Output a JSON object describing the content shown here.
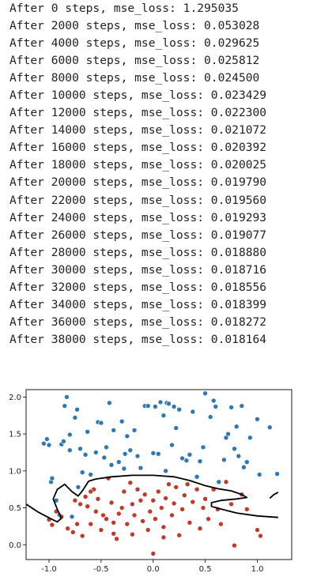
{
  "log_lines": [
    "After 0 steps, mse_loss: 1.295035",
    "After 2000 steps, mse_loss: 0.053028",
    "After 4000 steps, mse_loss: 0.029625",
    "After 6000 steps, mse_loss: 0.025812",
    "After 8000 steps, mse_loss: 0.024500",
    "After 10000 steps, mse_loss: 0.023429",
    "After 12000 steps, mse_loss: 0.022300",
    "After 14000 steps, mse_loss: 0.021072",
    "After 16000 steps, mse_loss: 0.020392",
    "After 18000 steps, mse_loss: 0.020025",
    "After 20000 steps, mse_loss: 0.019790",
    "After 22000 steps, mse_loss: 0.019560",
    "After 24000 steps, mse_loss: 0.019293",
    "After 26000 steps, mse_loss: 0.019077",
    "After 28000 steps, mse_loss: 0.018880",
    "After 30000 steps, mse_loss: 0.018716",
    "After 32000 steps, mse_loss: 0.018556",
    "After 34000 steps, mse_loss: 0.018399",
    "After 36000 steps, mse_loss: 0.018272",
    "After 38000 steps, mse_loss: 0.018164"
  ],
  "chart_data": {
    "type": "scatter",
    "xlim": [
      -1.22,
      1.33
    ],
    "ylim": [
      -0.2,
      2.1
    ],
    "x_ticks": [
      "-1.0",
      "-0.5",
      "0.0",
      "0.5",
      "1.0"
    ],
    "x_tick_values": [
      -1.0,
      -0.5,
      0.0,
      0.5,
      1.0
    ],
    "y_ticks": [
      "0.0",
      "0.5",
      "1.0",
      "1.5",
      "2.0"
    ],
    "y_tick_values": [
      0.0,
      0.5,
      1.0,
      1.5,
      2.0
    ],
    "grid": false,
    "series": [
      {
        "color": "#2f78b4",
        "points": [
          [
            -1.05,
            1.37
          ],
          [
            -1.02,
            1.43
          ],
          [
            -1.0,
            1.35
          ],
          [
            -0.98,
            0.85
          ],
          [
            -0.97,
            0.9
          ],
          [
            -0.9,
            0.4
          ],
          [
            -0.88,
            1.36
          ],
          [
            -0.86,
            1.4
          ],
          [
            -0.85,
            1.88
          ],
          [
            -0.83,
            2.0
          ],
          [
            -0.8,
            1.28
          ],
          [
            -0.8,
            1.49
          ],
          [
            -0.75,
            1.72
          ],
          [
            -0.73,
            1.83
          ],
          [
            -0.7,
            1.3
          ],
          [
            -0.68,
            0.98
          ],
          [
            -0.65,
            1.22
          ],
          [
            -0.63,
            1.53
          ],
          [
            -0.55,
            1.25
          ],
          [
            -0.53,
            1.66
          ],
          [
            -0.5,
            1.65
          ],
          [
            -0.47,
            1.18
          ],
          [
            -0.45,
            1.32
          ],
          [
            -0.42,
            1.92
          ],
          [
            -0.4,
            1.08
          ],
          [
            -0.38,
            1.55
          ],
          [
            -0.33,
            1.12
          ],
          [
            -0.3,
            1.67
          ],
          [
            -0.27,
            1.23
          ],
          [
            -0.25,
            1.47
          ],
          [
            -0.28,
            1.03
          ],
          [
            -0.22,
            1.28
          ],
          [
            -0.18,
            1.55
          ],
          [
            -0.15,
            1.2
          ],
          [
            -0.12,
            1.04
          ],
          [
            -0.08,
            1.88
          ],
          [
            -0.05,
            1.88
          ],
          [
            0.0,
            1.24
          ],
          [
            0.02,
            1.87
          ],
          [
            0.05,
            1.23
          ],
          [
            0.07,
            1.93
          ],
          [
            0.1,
            1.75
          ],
          [
            0.12,
            1.0
          ],
          [
            0.13,
            1.92
          ],
          [
            0.15,
            1.91
          ],
          [
            0.18,
            1.35
          ],
          [
            0.2,
            1.87
          ],
          [
            0.22,
            1.58
          ],
          [
            0.25,
            1.83
          ],
          [
            0.28,
            1.17
          ],
          [
            0.32,
            1.14
          ],
          [
            0.35,
            1.22
          ],
          [
            0.38,
            1.8
          ],
          [
            0.42,
            0.92
          ],
          [
            0.45,
            1.13
          ],
          [
            0.48,
            1.32
          ],
          [
            0.5,
            2.05
          ],
          [
            0.55,
            1.73
          ],
          [
            0.58,
            1.95
          ],
          [
            0.6,
            1.87
          ],
          [
            0.63,
            0.85
          ],
          [
            0.68,
            1.15
          ],
          [
            0.7,
            1.45
          ],
          [
            0.72,
            1.5
          ],
          [
            0.75,
            1.86
          ],
          [
            0.78,
            1.3
          ],
          [
            0.82,
            1.2
          ],
          [
            0.8,
            1.6
          ],
          [
            0.85,
            1.88
          ],
          [
            0.87,
            1.05
          ],
          [
            0.9,
            1.12
          ],
          [
            0.93,
            1.45
          ],
          [
            1.0,
            1.7
          ],
          [
            1.02,
            0.95
          ],
          [
            1.12,
            1.59
          ],
          [
            1.19,
            0.96
          ],
          [
            -0.93,
            0.6
          ],
          [
            -0.78,
            0.38
          ],
          [
            -0.72,
            0.78
          ],
          [
            -0.6,
            0.95
          ]
        ]
      },
      {
        "color": "#c0392b",
        "points": [
          [
            -1.0,
            0.34
          ],
          [
            -0.97,
            0.27
          ],
          [
            -0.93,
            0.45
          ],
          [
            -0.88,
            0.38
          ],
          [
            -0.82,
            0.22
          ],
          [
            -0.77,
            0.17
          ],
          [
            -0.73,
            0.28
          ],
          [
            -0.7,
            0.55
          ],
          [
            -0.68,
            0.12
          ],
          [
            -0.65,
            0.65
          ],
          [
            -0.63,
            0.52
          ],
          [
            -0.6,
            0.28
          ],
          [
            -0.57,
            0.75
          ],
          [
            -0.55,
            0.45
          ],
          [
            -0.53,
            0.62
          ],
          [
            -0.5,
            0.2
          ],
          [
            -0.48,
            0.4
          ],
          [
            -0.45,
            0.35
          ],
          [
            -0.43,
            0.9
          ],
          [
            -0.4,
            0.57
          ],
          [
            -0.38,
            0.3
          ],
          [
            -0.35,
            0.08
          ],
          [
            -0.33,
            0.42
          ],
          [
            -0.3,
            0.5
          ],
          [
            -0.28,
            0.72
          ],
          [
            -0.25,
            0.28
          ],
          [
            -0.22,
            0.84
          ],
          [
            -0.2,
            0.55
          ],
          [
            -0.18,
            0.4
          ],
          [
            -0.15,
            0.75
          ],
          [
            -0.12,
            0.6
          ],
          [
            -0.1,
            0.32
          ],
          [
            -0.08,
            0.68
          ],
          [
            -0.05,
            0.2
          ],
          [
            -0.03,
            0.45
          ],
          [
            0.0,
            0.6
          ],
          [
            0.02,
            0.35
          ],
          [
            0.05,
            0.72
          ],
          [
            0.08,
            0.5
          ],
          [
            0.1,
            0.24
          ],
          [
            0.12,
            0.63
          ],
          [
            0.15,
            0.82
          ],
          [
            0.18,
            0.4
          ],
          [
            0.2,
            0.56
          ],
          [
            0.22,
            0.78
          ],
          [
            0.25,
            0.13
          ],
          [
            0.28,
            0.48
          ],
          [
            0.3,
            0.67
          ],
          [
            0.33,
            0.82
          ],
          [
            0.35,
            0.3
          ],
          [
            0.38,
            0.58
          ],
          [
            0.42,
            0.75
          ],
          [
            0.45,
            0.22
          ],
          [
            0.48,
            0.5
          ],
          [
            0.5,
            0.62
          ],
          [
            0.53,
            0.35
          ],
          [
            0.58,
            0.75
          ],
          [
            0.62,
            0.48
          ],
          [
            0.65,
            0.28
          ],
          [
            0.7,
            0.85
          ],
          [
            0.75,
            0.55
          ],
          [
            0.78,
            -0.01
          ],
          [
            0.85,
            0.68
          ],
          [
            0.9,
            0.48
          ],
          [
            1.0,
            0.2
          ],
          [
            1.03,
            0.12
          ],
          [
            -0.75,
            0.6
          ],
          [
            -0.6,
            0.72
          ],
          [
            -0.2,
            0.14
          ],
          [
            0.0,
            -0.12
          ],
          [
            -0.38,
            0.15
          ],
          [
            0.1,
            0.1
          ]
        ]
      }
    ],
    "boundary_main": [
      [
        -1.22,
        0.55
      ],
      [
        -1.1,
        0.44
      ],
      [
        -0.98,
        0.35
      ],
      [
        -0.92,
        0.31
      ],
      [
        -0.88,
        0.36
      ],
      [
        -0.92,
        0.48
      ],
      [
        -0.96,
        0.62
      ],
      [
        -0.92,
        0.75
      ],
      [
        -0.85,
        0.82
      ],
      [
        -0.78,
        0.72
      ],
      [
        -0.72,
        0.66
      ],
      [
        -0.68,
        0.73
      ],
      [
        -0.62,
        0.86
      ],
      [
        -0.55,
        0.89
      ],
      [
        -0.4,
        0.92
      ],
      [
        -0.2,
        0.94
      ],
      [
        0.0,
        0.94
      ],
      [
        0.2,
        0.92
      ],
      [
        0.35,
        0.87
      ],
      [
        0.5,
        0.8
      ],
      [
        0.62,
        0.76
      ],
      [
        0.75,
        0.73
      ],
      [
        0.85,
        0.68
      ],
      [
        0.9,
        0.64
      ],
      [
        0.8,
        0.62
      ],
      [
        0.65,
        0.6
      ],
      [
        0.56,
        0.57
      ],
      [
        0.56,
        0.52
      ],
      [
        0.66,
        0.48
      ],
      [
        0.8,
        0.43
      ],
      [
        1.0,
        0.39
      ],
      [
        1.2,
        0.37
      ]
    ],
    "boundary_small": [
      [
        1.12,
        0.63
      ],
      [
        1.16,
        0.68
      ],
      [
        1.2,
        0.71
      ]
    ]
  }
}
